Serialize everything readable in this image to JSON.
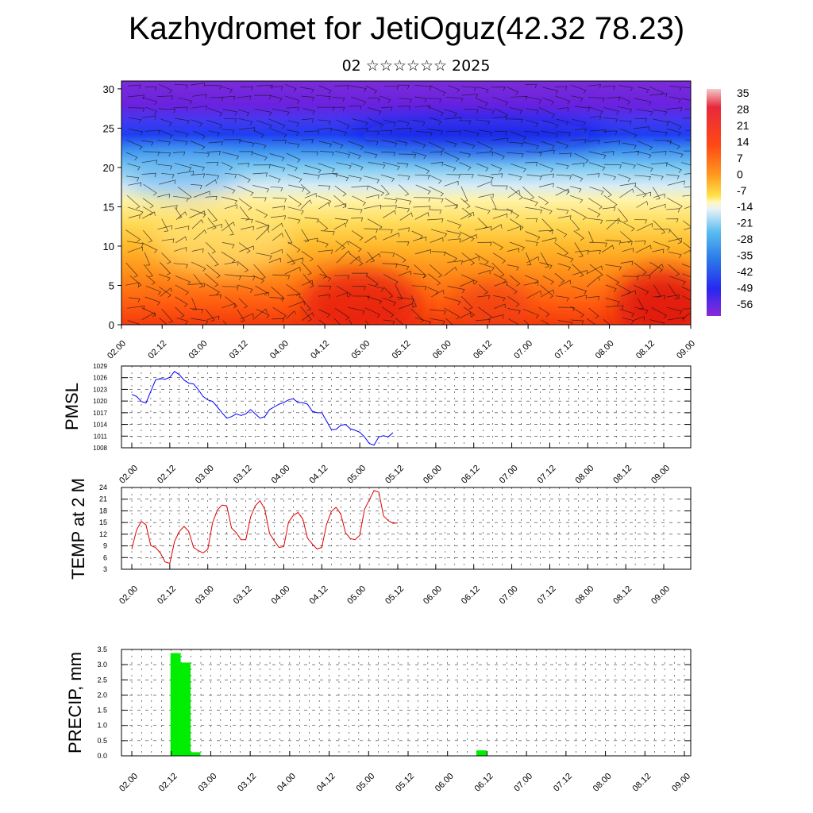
{
  "title": "Kazhydromet for JetiOguz(42.32 78.23)",
  "subtitle": "02 ☆☆☆☆☆☆ 2025",
  "time_ticks": [
    "02.00",
    "02.12",
    "03.00",
    "03.12",
    "04.00",
    "04.12",
    "05.00",
    "05.12",
    "06.00",
    "06.12",
    "07.00",
    "07.12",
    "08.00",
    "08.12",
    "09.00"
  ],
  "colors": {
    "pmsl_line": "#0000ff",
    "temp_line": "#e00000",
    "precip_bar": "#00ee00"
  },
  "chart_data": [
    {
      "type": "heatmap",
      "title": "",
      "xlabel": "",
      "ylabel": "",
      "x_ticks": [
        "02.00",
        "02.12",
        "03.00",
        "03.12",
        "04.00",
        "04.12",
        "05.00",
        "05.12",
        "06.00",
        "06.12",
        "07.00",
        "07.12",
        "08.00",
        "08.12",
        "09.00"
      ],
      "y_ticks": [
        0,
        5,
        10,
        15,
        20,
        25,
        30
      ],
      "ylim": [
        0,
        31
      ],
      "colorbar_labels": [
        "35",
        "28",
        "21",
        "14",
        "7",
        "0",
        "-7",
        "-14",
        "-21",
        "-28",
        "-35",
        "-42",
        "-49",
        "-56"
      ],
      "wind_barbs": true
    },
    {
      "type": "line",
      "ylabel": "PMSL",
      "y_ticks": [
        1008,
        1011,
        1014,
        1017,
        1020,
        1023,
        1026,
        1029
      ],
      "ylim": [
        1008,
        1029
      ],
      "grid": true,
      "x": [
        0,
        1,
        2,
        3,
        4,
        5,
        6,
        7,
        8,
        9,
        10,
        11,
        12,
        13,
        14,
        15,
        16,
        17,
        18,
        19,
        20,
        21,
        22,
        23,
        24,
        25,
        26,
        27,
        28,
        29,
        30,
        31,
        32,
        33,
        34,
        35,
        36,
        37,
        38,
        39,
        40,
        41,
        42,
        43,
        44,
        45,
        46,
        47,
        48,
        49,
        50,
        51,
        52,
        53,
        54,
        55,
        56
      ],
      "series": [
        {
          "values": [
            1021.7,
            1021.2,
            1019.9,
            1019.5,
            1022.5,
            1025.4,
            1025.8,
            1025.6,
            1026.1,
            1027.6,
            1026.8,
            1025.4,
            1024.6,
            1024.4,
            1022.9,
            1021.2,
            1020.3,
            1019.9,
            1018.5,
            1017.0,
            1015.6,
            1016.0,
            1016.7,
            1016.3,
            1016.7,
            1017.8,
            1016.7,
            1015.6,
            1016.0,
            1017.8,
            1018.5,
            1019.2,
            1019.6,
            1020.3,
            1020.6,
            1019.6,
            1019.6,
            1019.2,
            1017.4,
            1017.0,
            1017.0,
            1014.9,
            1012.7,
            1012.7,
            1013.8,
            1014.0,
            1012.9,
            1012.5,
            1012.0,
            1010.8,
            1009.1,
            1008.7,
            1010.8,
            1011.1,
            1010.8,
            1011.9,
            null
          ]
        }
      ]
    },
    {
      "type": "line",
      "ylabel": "TEMP at 2 M",
      "y_ticks": [
        3,
        6,
        9,
        12,
        15,
        18,
        21,
        24
      ],
      "ylim": [
        3,
        24
      ],
      "grid": true,
      "x": [
        0,
        1,
        2,
        3,
        4,
        5,
        6,
        7,
        8,
        9,
        10,
        11,
        12,
        13,
        14,
        15,
        16,
        17,
        18,
        19,
        20,
        21,
        22,
        23,
        24,
        25,
        26,
        27,
        28,
        29,
        30,
        31,
        32,
        33,
        34,
        35,
        36,
        37,
        38,
        39,
        40,
        41,
        42,
        43,
        44,
        45,
        46,
        47,
        48,
        49,
        50,
        51,
        52,
        53,
        54,
        55,
        56
      ],
      "series": [
        {
          "values": [
            8.2,
            13.1,
            15.3,
            14.4,
            9.1,
            8.6,
            7.2,
            4.9,
            4.5,
            10.1,
            12.7,
            14.0,
            12.7,
            8.6,
            7.8,
            7.2,
            8.1,
            14.9,
            18.2,
            19.5,
            19.3,
            13.6,
            12.4,
            10.6,
            10.6,
            16.4,
            19.3,
            20.6,
            18.4,
            12.2,
            10.3,
            8.6,
            8.8,
            15.1,
            16.8,
            17.6,
            15.9,
            11.0,
            9.5,
            8.2,
            8.6,
            14.5,
            17.8,
            18.9,
            17.2,
            12.4,
            10.9,
            10.6,
            11.7,
            18.4,
            20.8,
            23.2,
            22.8,
            16.7,
            15.5,
            14.8,
            14.9
          ]
        }
      ]
    },
    {
      "type": "bar",
      "ylabel": "PRECIP, mm",
      "y_ticks": [
        "0.0",
        "0.5",
        "1.0",
        "1.5",
        "2.0",
        "2.5",
        "3.0",
        "3.5"
      ],
      "ylim": [
        0,
        3.5
      ],
      "grid": true,
      "bars": [
        {
          "x": 4,
          "value": 3.38
        },
        {
          "x": 5,
          "value": 3.07
        },
        {
          "x": 6,
          "value": 0.12
        },
        {
          "x": 35,
          "value": 0.18
        }
      ]
    }
  ]
}
